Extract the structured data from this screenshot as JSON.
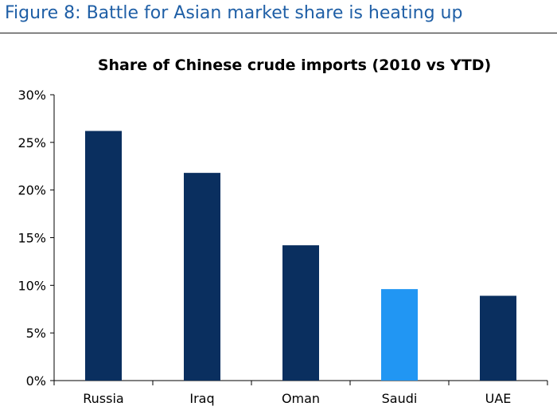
{
  "figure_title": "Figure 8: Battle for Asian market share is heating up",
  "chart_data": {
    "type": "bar",
    "title": "Share of Chinese crude imports (2010 vs YTD)",
    "categories": [
      "Russia",
      "Iraq",
      "Oman",
      "Saudi",
      "UAE"
    ],
    "values": [
      26.2,
      21.8,
      14.2,
      9.6,
      8.9
    ],
    "bar_colors": [
      "#0a2f5f",
      "#0a2f5f",
      "#0a2f5f",
      "#2196f3",
      "#0a2f5f"
    ],
    "ylim": [
      0,
      30
    ],
    "yticks": [
      0,
      5,
      10,
      15,
      20,
      25,
      30
    ],
    "ytick_labels": [
      "0%",
      "5%",
      "10%",
      "15%",
      "20%",
      "25%",
      "30%"
    ],
    "xlabel": "",
    "ylabel": "",
    "grid": false,
    "legend": "none"
  }
}
